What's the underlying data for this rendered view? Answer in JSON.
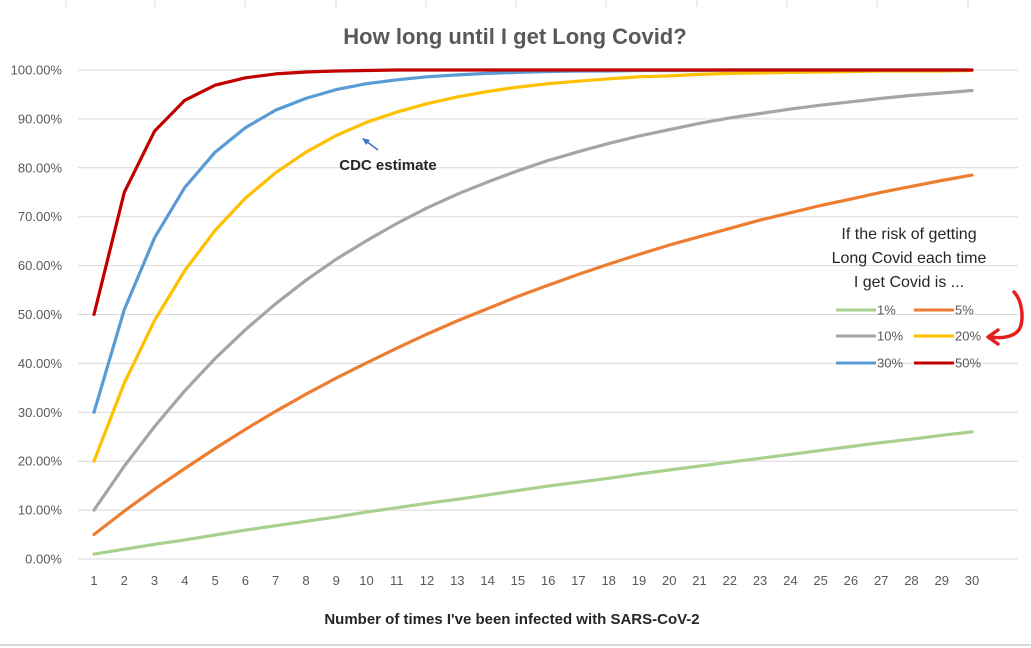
{
  "chart_data": {
    "type": "line",
    "title": "How long until I get Long Covid?",
    "xlabel": "Number of times I've been infected with SARS-CoV-2",
    "ylabel": "",
    "x": [
      1,
      2,
      3,
      4,
      5,
      6,
      7,
      8,
      9,
      10,
      11,
      12,
      13,
      14,
      15,
      16,
      17,
      18,
      19,
      20,
      21,
      22,
      23,
      24,
      25,
      26,
      27,
      28,
      29,
      30
    ],
    "ylim": [
      0,
      100
    ],
    "yticks": [
      "0.00%",
      "10.00%",
      "20.00%",
      "30.00%",
      "40.00%",
      "50.00%",
      "60.00%",
      "70.00%",
      "80.00%",
      "90.00%",
      "100.00%"
    ],
    "grid": true,
    "legend_position": "right",
    "legend_title": [
      "If the risk of getting",
      "Long Covid each time",
      "I get Covid is ..."
    ],
    "series": [
      {
        "name": "1%",
        "color": "#a9d18e",
        "values": [
          1.0,
          2.0,
          3.0,
          3.9,
          4.9,
          5.9,
          6.8,
          7.7,
          8.6,
          9.6,
          10.5,
          11.4,
          12.2,
          13.1,
          14.0,
          14.9,
          15.7,
          16.5,
          17.4,
          18.2,
          19.0,
          19.8,
          20.6,
          21.4,
          22.2,
          23.0,
          23.8,
          24.5,
          25.3,
          26.0
        ]
      },
      {
        "name": "5%",
        "color": "#ed7d31",
        "values": [
          5.0,
          9.8,
          14.3,
          18.5,
          22.6,
          26.5,
          30.2,
          33.7,
          37.0,
          40.1,
          43.1,
          46.0,
          48.7,
          51.2,
          53.7,
          56.0,
          58.2,
          60.3,
          62.3,
          64.2,
          65.9,
          67.6,
          69.3,
          70.8,
          72.3,
          73.6,
          75.0,
          76.2,
          77.4,
          78.5
        ]
      },
      {
        "name": "10%",
        "color": "#a5a5a5",
        "values": [
          10.0,
          19.0,
          27.1,
          34.4,
          41.0,
          46.9,
          52.2,
          57.0,
          61.3,
          65.1,
          68.6,
          71.8,
          74.6,
          77.1,
          79.4,
          81.5,
          83.3,
          85.0,
          86.5,
          87.8,
          89.1,
          90.2,
          91.1,
          92.0,
          92.8,
          93.5,
          94.2,
          94.8,
          95.3,
          95.8
        ]
      },
      {
        "name": "20%",
        "color": "#ffc000",
        "values": [
          20.0,
          36.0,
          48.8,
          59.0,
          67.2,
          73.8,
          79.0,
          83.2,
          86.6,
          89.3,
          91.4,
          93.1,
          94.5,
          95.6,
          96.5,
          97.2,
          97.7,
          98.2,
          98.6,
          98.8,
          99.1,
          99.3,
          99.4,
          99.5,
          99.6,
          99.7,
          99.8,
          99.8,
          99.8,
          99.9
        ]
      },
      {
        "name": "30%",
        "color": "#5b9bd5",
        "values": [
          30.0,
          51.0,
          65.7,
          76.0,
          83.2,
          88.2,
          91.8,
          94.2,
          96.0,
          97.2,
          98.0,
          98.6,
          99.0,
          99.3,
          99.5,
          99.7,
          99.8,
          99.8,
          99.9,
          99.9,
          99.9,
          100,
          100,
          100,
          100,
          100,
          100,
          100,
          100,
          100
        ]
      },
      {
        "name": "50%",
        "color": "#c00000",
        "values": [
          50.0,
          75.0,
          87.5,
          93.8,
          96.9,
          98.4,
          99.2,
          99.6,
          99.8,
          99.9,
          100,
          100,
          100,
          100,
          100,
          100,
          100,
          100,
          100,
          100,
          100,
          100,
          100,
          100,
          100,
          100,
          100,
          100,
          100,
          100
        ]
      }
    ],
    "annotations": [
      {
        "text": "CDC estimate",
        "series": "20%",
        "x": 10
      }
    ]
  }
}
